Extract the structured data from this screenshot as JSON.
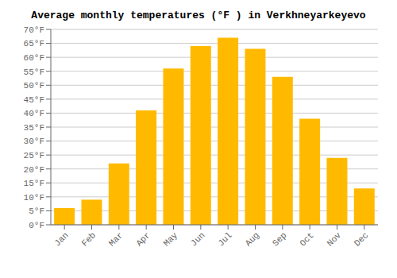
{
  "chart_data": {
    "type": "bar",
    "title": "Average monthly temperatures (°F ) in Verkhneyarkeyevo",
    "categories": [
      "Jan",
      "Feb",
      "Mar",
      "Apr",
      "May",
      "Jun",
      "Jul",
      "Aug",
      "Sep",
      "Oct",
      "Nov",
      "Dec"
    ],
    "values": [
      6,
      9,
      22,
      41,
      56,
      64,
      67,
      63,
      53,
      38,
      24,
      13
    ],
    "color": "#FFBA00",
    "ylim": [
      0,
      70
    ],
    "yticks": [
      {
        "value": 0,
        "label": "0°F"
      },
      {
        "value": 5,
        "label": "5°F"
      },
      {
        "value": 10,
        "label": "10°F"
      },
      {
        "value": 15,
        "label": "15°F"
      },
      {
        "value": 20,
        "label": "20°F"
      },
      {
        "value": 25,
        "label": "25°F"
      },
      {
        "value": 30,
        "label": "30°F"
      },
      {
        "value": 35,
        "label": "35°F"
      },
      {
        "value": 40,
        "label": "40°F"
      },
      {
        "value": 45,
        "label": "45°F"
      },
      {
        "value": 50,
        "label": "50°F"
      },
      {
        "value": 55,
        "label": "55°F"
      },
      {
        "value": 60,
        "label": "60°F"
      },
      {
        "value": 65,
        "label": "65°F"
      },
      {
        "value": 70,
        "label": "70°F"
      }
    ],
    "grid": true
  }
}
